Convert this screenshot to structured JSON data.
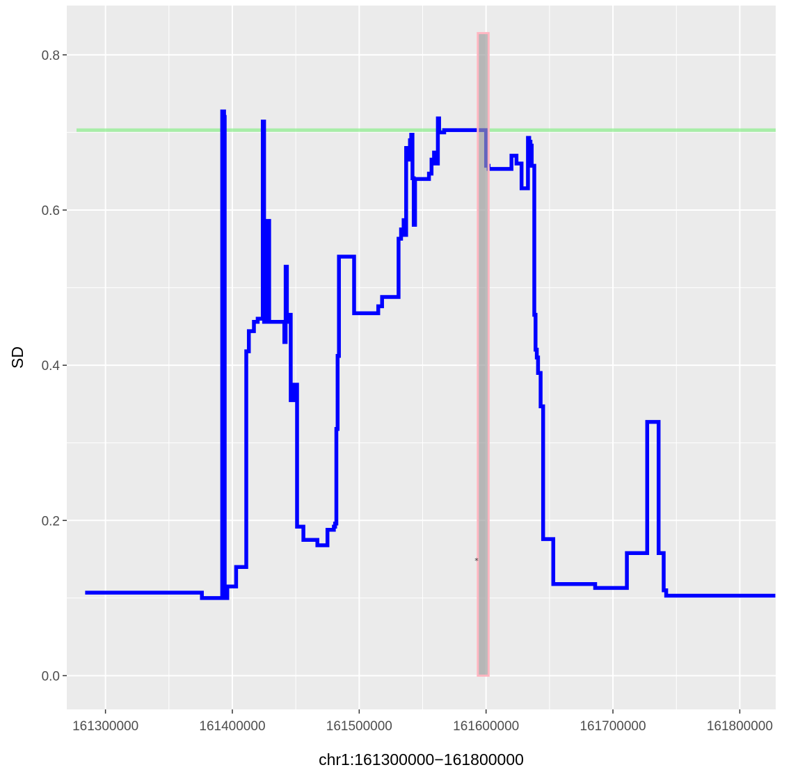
{
  "chart_data": {
    "type": "line",
    "title": "",
    "xlabel": "chr1:161300000−161800000",
    "ylabel": "SD",
    "xlim": [
      161269500,
      161828300
    ],
    "ylim": [
      -0.0435,
      0.8635
    ],
    "grid": true,
    "legend": "none",
    "x_ticks": [
      161300000,
      161400000,
      161500000,
      161600000,
      161700000,
      161800000
    ],
    "x_tick_labels": [
      "161300000",
      "161400000",
      "161500000",
      "161600000",
      "161700000",
      "161800000"
    ],
    "y_ticks": [
      0.0,
      0.2,
      0.4,
      0.6,
      0.8
    ],
    "y_tick_labels": [
      "0.0",
      "0.2",
      "0.4",
      "0.6",
      "0.8"
    ],
    "colors": {
      "panel": "#ebebeb",
      "grid": "#ffffff",
      "line": "#0000ff",
      "threshold": "#90ee90",
      "region_fill": "#999999",
      "region_border": "#ffb6c1",
      "marker": "#333333"
    },
    "threshold_line": {
      "y": 0.703
    },
    "highlight_region": {
      "x_start": 161593500,
      "x_end": 161602000,
      "y_start": 0.0,
      "y_end": 0.828
    },
    "marker": {
      "x": 161592500,
      "y": 0.149,
      "symbol": "*"
    },
    "series": [
      {
        "step": "hv",
        "x": [
          161284000,
          161376000,
          161392000,
          161393500,
          161394000,
          161395000,
          161396000,
          161403000,
          161411000,
          161413000,
          161417000,
          161420000,
          161424000,
          161425000,
          161426000,
          161427000,
          161428000,
          161429000,
          161430000,
          161431000,
          161432000,
          161441000,
          161442000,
          161443000,
          161444000,
          161446000,
          161449000,
          161450000,
          161451000,
          161456000,
          161467000,
          161475000,
          161480000,
          161481000,
          161482000,
          161483000,
          161484000,
          161487000,
          161496000,
          161515000,
          161518000,
          161530000,
          161531000,
          161533000,
          161535000,
          161536000,
          161537000,
          161539000,
          161540000,
          161541000,
          161542000,
          161543000,
          161544000,
          161545000,
          161546000,
          161555000,
          161557000,
          161559000,
          161560000,
          161562000,
          161563000,
          161565000,
          161567000,
          161600000,
          161602000,
          161607000,
          161620000,
          161621000,
          161624000,
          161626000,
          161628000,
          161630000,
          161633000,
          161634000,
          161635000,
          161636000,
          161638000,
          161639000,
          161640000,
          161641000,
          161642000,
          161643000,
          161645000,
          161653000,
          161686000,
          161687000,
          161711000,
          161723000,
          161727000,
          161736000,
          161740000,
          161742000,
          161828000
        ],
        "values": [
          0.107,
          0.1,
          0.727,
          0.72,
          0.1,
          0.1,
          0.115,
          0.14,
          0.418,
          0.444,
          0.456,
          0.46,
          0.714,
          0.456,
          0.58,
          0.458,
          0.586,
          0.456,
          0.456,
          0.456,
          0.456,
          0.43,
          0.527,
          0.456,
          0.465,
          0.355,
          0.375,
          0.375,
          0.192,
          0.175,
          0.168,
          0.188,
          0.192,
          0.196,
          0.318,
          0.412,
          0.54,
          0.54,
          0.467,
          0.476,
          0.488,
          0.488,
          0.563,
          0.575,
          0.587,
          0.568,
          0.68,
          0.665,
          0.69,
          0.697,
          0.641,
          0.581,
          0.64,
          0.64,
          0.64,
          0.647,
          0.665,
          0.674,
          0.66,
          0.718,
          0.7,
          0.7,
          0.703,
          0.657,
          0.653,
          0.653,
          0.67,
          0.67,
          0.66,
          0.66,
          0.628,
          0.628,
          0.693,
          0.688,
          0.683,
          0.657,
          0.465,
          0.42,
          0.41,
          0.39,
          0.39,
          0.347,
          0.176,
          0.118,
          0.113,
          0.113,
          0.158,
          0.158,
          0.327,
          0.158,
          0.11,
          0.103,
          0.103
        ]
      }
    ]
  }
}
